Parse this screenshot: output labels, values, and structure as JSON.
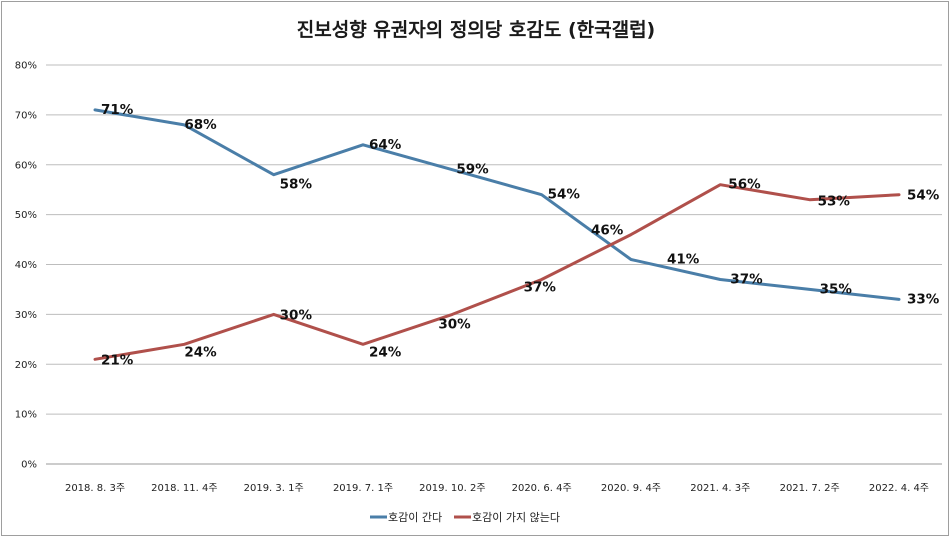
{
  "chart_data": {
    "type": "line",
    "title": "진보성향 유권자의 정의당 호감도 (한국갤럽)",
    "categories": [
      "2018. 8. 3주",
      "2018. 11. 4주",
      "2019. 3. 1주",
      "2019. 7. 1주",
      "2019. 10. 2주",
      "2020. 6. 4주",
      "2020. 9. 4주",
      "2021. 4. 3주",
      "2021. 7. 2주",
      "2022. 4. 4주"
    ],
    "y_ticks": [
      "0%",
      "10%",
      "20%",
      "30%",
      "40%",
      "50%",
      "60%",
      "70%",
      "80%"
    ],
    "ylim": [
      0,
      80
    ],
    "grid": true,
    "legend_position": "bottom",
    "series": [
      {
        "name": "호감이 간다",
        "color": "#4a7ea8",
        "values": [
          71,
          68,
          58,
          64,
          59,
          54,
          41,
          37,
          35,
          33
        ],
        "labels": [
          "71%",
          "68%",
          "58%",
          "64%",
          "59%",
          "54%",
          "41%",
          "37%",
          "35%",
          "33%"
        ]
      },
      {
        "name": "호감이 가지 않는다",
        "color": "#b0504b",
        "values": [
          21,
          24,
          30,
          24,
          30,
          37,
          46,
          56,
          53,
          54
        ],
        "labels": [
          "21%",
          "24%",
          "30%",
          "24%",
          "30%",
          "37%",
          "46%",
          "56%",
          "53%",
          "54%"
        ]
      }
    ]
  }
}
